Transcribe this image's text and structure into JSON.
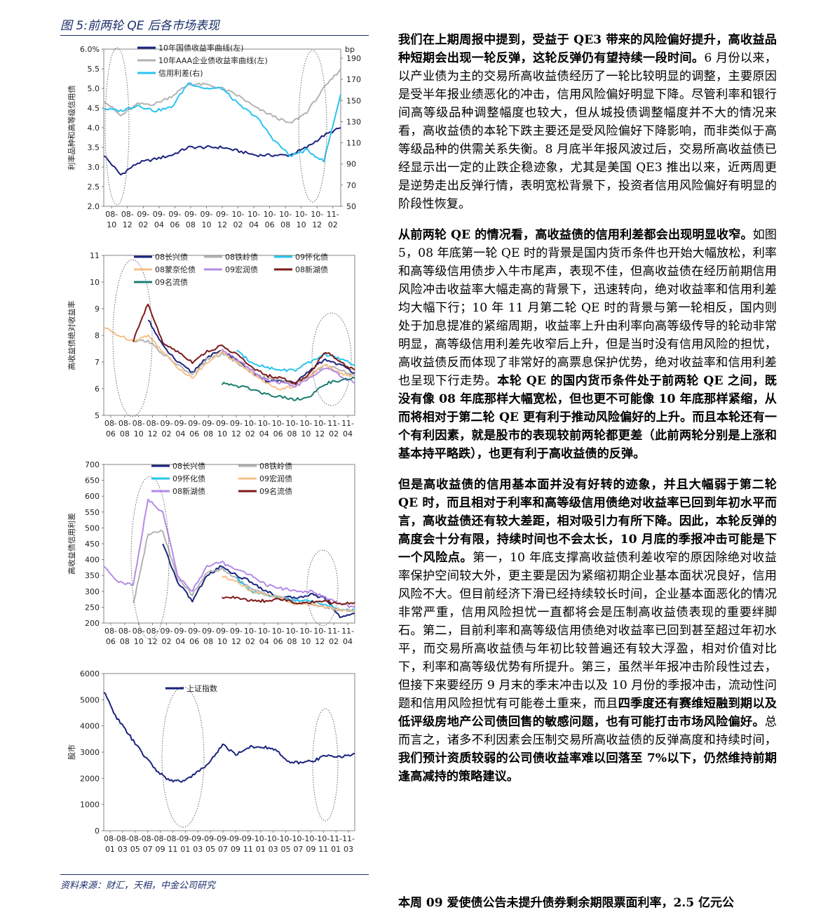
{
  "figure": {
    "title": "图 5:前两轮 QE 后各市场表现",
    "source": "资料来源：财汇，天相，中金公司研究"
  },
  "chart_data": [
    {
      "type": "line",
      "ylabel": "利率品种和高等级信用债",
      "ylim": [
        2.0,
        6.0
      ],
      "y_ticks": [
        "6.0%",
        "5.5",
        "5.0",
        "4.5",
        "4.0",
        "3.5",
        "3.0",
        "2.5",
        "2.0"
      ],
      "y2label": "bp",
      "y2lim": [
        50,
        190
      ],
      "y2_ticks": [
        "190",
        "170",
        "150",
        "130",
        "110",
        "90",
        "70",
        "50"
      ],
      "categories": [
        "08-10",
        "08-12",
        "09-02",
        "09-04",
        "09-06",
        "09-08",
        "09-10",
        "09-12",
        "10-02",
        "10-04",
        "10-06",
        "10-08",
        "10-10",
        "10-12",
        "11-02"
      ],
      "series": [
        {
          "name": "10年国债收益率曲线(左)",
          "color": "#1a237e",
          "axis": "left",
          "values": [
            3.3,
            2.8,
            3.1,
            3.2,
            3.3,
            3.5,
            3.5,
            3.5,
            3.4,
            3.3,
            3.3,
            3.3,
            3.5,
            3.8,
            4.0
          ]
        },
        {
          "name": "10年AAA企业债收益率曲线(左)",
          "color": "#b3b3b3",
          "axis": "left",
          "values": [
            4.7,
            4.3,
            4.6,
            4.6,
            4.8,
            5.1,
            5.1,
            5.0,
            4.8,
            4.5,
            4.3,
            4.1,
            4.4,
            5.0,
            5.5
          ]
        },
        {
          "name": "信用利差(右)",
          "color": "#29c4f0",
          "axis": "right",
          "values": [
            137,
            135,
            140,
            135,
            138,
            160,
            155,
            155,
            140,
            130,
            110,
            95,
            100,
            90,
            150
          ]
        }
      ]
    },
    {
      "type": "line",
      "ylabel": "高收益债绝对收益率",
      "ylim": [
        5,
        11
      ],
      "y_ticks": [
        "11",
        "10",
        "9",
        "8",
        "7",
        "6",
        "5"
      ],
      "categories": [
        "08-06",
        "08-08",
        "08-10",
        "08-12",
        "09-02",
        "09-04",
        "09-06",
        "09-08",
        "09-10",
        "09-12",
        "10-02",
        "10-04",
        "10-06",
        "10-08",
        "10-10",
        "10-12",
        "11-02",
        "11-04"
      ],
      "series": [
        {
          "name": "08长兴债",
          "color": "#1a237e",
          "values": [
            null,
            null,
            null,
            8.6,
            7.6,
            7.0,
            6.6,
            7.2,
            7.4,
            7.1,
            6.6,
            6.3,
            6.3,
            6.2,
            6.7,
            7.1,
            6.9,
            6.6
          ]
        },
        {
          "name": "08铁岭债",
          "color": "#b3b3b3",
          "values": [
            null,
            null,
            7.8,
            7.8,
            7.3,
            6.9,
            6.5,
            7.1,
            7.3,
            7.0,
            6.6,
            6.4,
            6.3,
            6.2,
            6.5,
            6.9,
            6.7,
            6.5
          ]
        },
        {
          "name": "09怀化债",
          "color": "#29c4f0",
          "values": [
            null,
            null,
            null,
            null,
            null,
            null,
            null,
            null,
            null,
            7.4,
            7.0,
            6.8,
            6.7,
            6.7,
            7.0,
            7.3,
            7.1,
            6.9
          ]
        },
        {
          "name": "08蒙奈伦债",
          "color": "#f7c08a",
          "values": [
            8.3,
            8.0,
            7.8,
            8.0,
            7.4,
            6.8,
            6.4,
            7.0,
            7.4,
            7.0,
            6.6,
            6.2,
            6.0,
            6.1,
            6.5,
            6.9,
            6.6,
            6.4
          ]
        },
        {
          "name": "09宏润债",
          "color": "#b48ae8",
          "values": [
            null,
            null,
            null,
            null,
            null,
            null,
            null,
            null,
            7.5,
            7.1,
            6.7,
            6.3,
            6.2,
            6.1,
            6.4,
            6.8,
            6.5,
            6.2
          ]
        },
        {
          "name": "08新湖债",
          "color": "#7b1a1a",
          "values": [
            null,
            null,
            7.8,
            9.2,
            7.7,
            7.4,
            7.0,
            7.4,
            7.6,
            7.3,
            6.8,
            6.5,
            6.4,
            6.2,
            6.6,
            7.4,
            7.0,
            6.7
          ]
        },
        {
          "name": "09名流债",
          "color": "#1b7c70",
          "values": [
            null,
            null,
            null,
            null,
            null,
            null,
            null,
            null,
            6.2,
            6.1,
            6.0,
            5.8,
            5.7,
            5.6,
            5.7,
            6.2,
            6.3,
            6.4
          ]
        }
      ]
    },
    {
      "type": "line",
      "ylabel": "高收益债信用利差",
      "ylim": [
        200,
        700
      ],
      "y_ticks": [
        "700",
        "650",
        "600",
        "550",
        "500",
        "450",
        "400",
        "350",
        "300",
        "250",
        "200"
      ],
      "categories": [
        "08-06",
        "08-08",
        "08-10",
        "08-12",
        "09-02",
        "09-04",
        "09-06",
        "09-08",
        "09-10",
        "09-12",
        "10-02",
        "10-04",
        "10-06",
        "10-08",
        "10-10",
        "10-12",
        "11-02",
        "11-04"
      ],
      "series": [
        {
          "name": "08长兴债",
          "color": "#1a237e",
          "values": [
            null,
            null,
            null,
            null,
            450,
            330,
            270,
            350,
            380,
            350,
            330,
            300,
            280,
            280,
            290,
            280,
            220,
            230
          ]
        },
        {
          "name": "08铁岭债",
          "color": "#b3b3b3",
          "values": [
            null,
            null,
            260,
            480,
            490,
            340,
            290,
            360,
            370,
            340,
            310,
            290,
            280,
            270,
            260,
            250,
            240,
            240
          ]
        },
        {
          "name": "09怀化债",
          "color": "#29c4f0",
          "values": [
            null,
            null,
            null,
            null,
            null,
            null,
            null,
            null,
            null,
            340,
            300,
            290,
            280,
            270,
            270,
            260,
            240,
            240
          ]
        },
        {
          "name": "09宏润债",
          "color": "#f7c08a",
          "values": [
            null,
            null,
            null,
            null,
            null,
            null,
            null,
            null,
            350,
            330,
            300,
            290,
            280,
            260,
            260,
            250,
            240,
            240
          ]
        },
        {
          "name": "08新湖债",
          "color": "#b48ae8",
          "values": [
            380,
            330,
            320,
            590,
            550,
            350,
            300,
            380,
            390,
            370,
            350,
            320,
            310,
            300,
            300,
            280,
            260,
            250
          ]
        },
        {
          "name": "09名流债",
          "color": "#7b1a1a",
          "values": [
            null,
            null,
            null,
            null,
            null,
            null,
            null,
            null,
            280,
            280,
            270,
            270,
            275,
            265,
            265,
            270,
            260,
            265
          ]
        }
      ]
    },
    {
      "type": "line",
      "ylabel": "股市",
      "ylim": [
        0,
        6000
      ],
      "y_ticks": [
        "6000",
        "5000",
        "4000",
        "3000",
        "2000",
        "1000",
        "0"
      ],
      "categories": [
        "08-01",
        "08-03",
        "08-05",
        "08-07",
        "08-09",
        "08-11",
        "09-01",
        "09-03",
        "09-05",
        "09-07",
        "09-09",
        "09-11",
        "10-01",
        "10-03",
        "10-05",
        "10-07",
        "10-09",
        "10-11",
        "11-01",
        "11-03"
      ],
      "series": [
        {
          "name": "上证指数",
          "color": "#1a237e",
          "values": [
            5300,
            4300,
            3600,
            2900,
            2300,
            1900,
            1900,
            2200,
            2600,
            3300,
            2900,
            3200,
            3200,
            3100,
            2600,
            2600,
            2700,
            2900,
            2800,
            2950
          ]
        }
      ]
    }
  ],
  "body": {
    "p1_bold": "我们在上期周报中提到，受益于 QE3 带来的风险偏好提升，高收益品种短期会出现一轮反弹，这轮反弹仍有望持续一段时间。",
    "p1_rest": "6 月份以来，以产业债为主的交易所高收益债经历了一轮比较明显的调整，主要原因是受半年报业绩恶化的冲击，信用风险偏好明显下降。尽管利率和银行间高等级品种调整幅度也较大，但从城投债调整幅度并不大的情况来看，高收益债的本轮下跌主要还是受风险偏好下降影响，而非类似于高等级品种的供需关系失衡。8 月底半年报风波过后，交易所高收益债已经显示出一定的止跌企稳迹象，尤其是美国 QE3 推出以来，近两周更是逆势走出反弹行情，表明宽松背景下，投资者信用风险偏好有明显的阶段性恢复。",
    "p2_bold1": "从前两轮 QE 的情况看，高收益债的信用利差都会出现明显收窄。",
    "p2_mid": "如图 5，08 年底第一轮 QE 时的背景是国内货币条件也开始大幅放松，利率和高等级信用债步入牛市尾声，表现不佳，但高收益债在经历前期信用风险冲击收益率大幅走高的背景下，迅速转向，绝对收益率和信用利差均大幅下行；10 年 11 月第二轮 QE 时的背景与第一轮相反，国内则处于加息提准的紧缩周期，收益率上升由利率向高等级传导的轮动非常明显，高等级信用利差先收窄后上升，但是当时没有信用风险的担忧，高收益债反而体现了非常好的高票息保护优势，绝对收益率和信用利差也呈现下行走势。",
    "p2_bold2": "本轮 QE 的国内货币条件处于前两轮 QE 之间，既没有像 08 年底那样大幅宽松，但也更不可能像 10 年底那样紧缩，从而将相对于第二轮 QE 更有利于推动风险偏好的上升。而且本轮还有一个有利因素，就是股市的表现较前两轮都更差（此前两轮分别是上涨和基本持平略跌），也更有利于高收益债的反弹。",
    "p3_bold1": "但是高收益债的信用基本面并没有好转的迹象，并且大幅弱于第二轮 QE 时，而且相对于利率和高等级信用债绝对收益率已回到年初水平而言，高收益债还有较大差距，相对吸引力有所下降。因此，本轮反弹的高度会十分有限，持续时间也不会太长，10 月底的季报冲击可能是下一个风险点。",
    "p3_mid1": "第一，10 年底支撑高收益债利差收窄的原因除绝对收益率保护空间较大外，更主要是因为紧缩初期企业基本面状况良好，信用风险不大。但目前经济下滑已经持续较长时间，企业基本面恶化的情况非常严重，信用风险担忧一直都将会是压制高收益债表现的重要绊脚石。第二，目前利率和高等级信用债绝对收益率已回到甚至超过年初水平，而交易所高收益债与年初比较普遍还有较大浮盈，相对价值对比下，利率和高等级优势有所提升。第三，虽然半年报冲击阶段性过去，但接下来要经历 9 月末的季末冲击以及 10 月份的季报冲击，流动性问题和信用风险担忧有可能卷土重来，而且",
    "p3_bold2": "四季度还有赛维短融到期以及低评级房地产公司债回售的敏感问题，也有可能打击市场风险偏好。",
    "p3_mid2": "总而言之，诸多不利因素会压制交易所高收益债的反弹高度和持续时间，",
    "p3_bold3": "我们预计资质较弱的公司债收益率难以回落至 7%以下，仍然维持前期逢高减持的策略建议。",
    "cut_line": "本周 09 爱使债公告未提升债券剩余期限票面利率，2.5 亿元公"
  }
}
